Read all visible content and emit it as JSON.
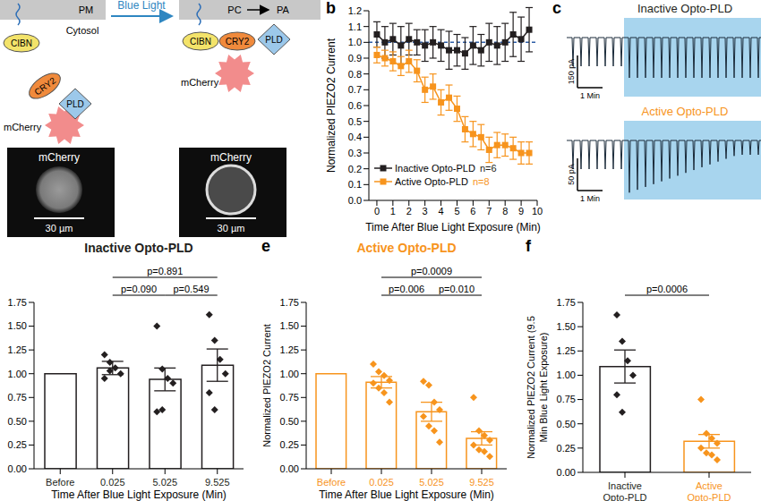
{
  "diagram": {
    "membrane": "PM",
    "cytosol": "Cytosol",
    "stimulus": "Blue Light",
    "substrate": "PC",
    "product": "PA",
    "proteins": [
      "CIBN",
      "CRY2",
      "PLD"
    ],
    "fluorophore": "mCherry",
    "images": [
      {
        "label": "mCherry",
        "scale_bar": "30 µm"
      },
      {
        "label": "mCherry",
        "scale_bar": "30 µm"
      }
    ]
  },
  "traces": {
    "panel": "c",
    "stimulus_color": "#a8d5ee",
    "panels": [
      {
        "title": "Inactive Opto-PLD",
        "color": "#231f20",
        "scale_y": "150 pA",
        "scale_x": "1 Min"
      },
      {
        "title": "Active Opto-PLD",
        "color": "#f7941d",
        "scale_y": "50 pA",
        "scale_x": "1 Min"
      }
    ]
  },
  "chart_data": [
    {
      "panel": "b",
      "type": "line",
      "x": [
        0,
        0.5,
        1,
        1.5,
        2,
        2.5,
        3,
        3.5,
        4,
        4.5,
        5,
        5.5,
        6,
        6.5,
        7,
        7.5,
        8,
        8.5,
        9,
        9.5
      ],
      "xlim": [
        -0.5,
        10
      ],
      "xticks": [
        0,
        1,
        2,
        3,
        4,
        5,
        6,
        7,
        8,
        9,
        10
      ],
      "ylim": [
        0,
        1.2
      ],
      "yticks": [
        {
          "value": 0,
          "label": "0.0"
        },
        0.1,
        0.2,
        0.3,
        0.4,
        0.5,
        0.6,
        0.7,
        0.8,
        0.9,
        {
          "value": 1,
          "label": "1.0"
        },
        1.1,
        1.2
      ],
      "x_label": "Time After Blue Light Exposure (Min)",
      "y_label": "Normalized PIEZO2 Current",
      "legend": "lower left",
      "reference_line": 1,
      "annotations": [
        {
          "text": "n=6",
          "series": "Inactive Opto-PLD"
        },
        {
          "text": "n=8",
          "series": "Active Opto-PLD"
        }
      ],
      "series": [
        {
          "name": "Inactive Opto-PLD",
          "color": "#231f20",
          "marker": "square",
          "values": [
            1.05,
            1.0,
            1.02,
            0.98,
            1.02,
            1.0,
            0.98,
            1.0,
            0.98,
            0.95,
            0.95,
            0.93,
            0.98,
            0.95,
            1.0,
            0.98,
            1.0,
            1.05,
            1.02,
            1.08
          ],
          "errors": [
            0.08,
            0.1,
            0.1,
            0.12,
            0.1,
            0.08,
            0.1,
            0.1,
            0.1,
            0.12,
            0.1,
            0.1,
            0.12,
            0.1,
            0.12,
            0.12,
            0.12,
            0.14,
            0.14,
            0.14
          ]
        },
        {
          "name": "Active Opto-PLD",
          "color": "#f7941d",
          "marker": "square",
          "values": [
            0.92,
            0.9,
            0.88,
            0.85,
            0.88,
            0.82,
            0.7,
            0.72,
            0.62,
            0.65,
            0.58,
            0.45,
            0.42,
            0.4,
            0.32,
            0.35,
            0.35,
            0.33,
            0.3,
            0.3
          ],
          "errors": [
            0.05,
            0.05,
            0.06,
            0.06,
            0.07,
            0.07,
            0.08,
            0.08,
            0.08,
            0.08,
            0.08,
            0.08,
            0.08,
            0.08,
            0.08,
            0.08,
            0.07,
            0.07,
            0.07,
            0.07
          ]
        }
      ]
    },
    {
      "type": "bar",
      "title": "Inactive Opto-PLD",
      "color": "#231f20",
      "categories": [
        "Before",
        "0.025",
        "5.025",
        "9.525"
      ],
      "values": [
        1,
        1.06,
        0.94,
        1.09
      ],
      "errors": [
        null,
        0.07,
        0.12,
        0.17
      ],
      "points": [
        [],
        [
          1.2,
          1.12,
          1.06,
          1.0,
          0.95,
          1.03
        ],
        [
          1.5,
          1.05,
          0.95,
          0.9,
          0.6,
          0.62
        ],
        [
          1.62,
          1.35,
          1.15,
          1.0,
          0.8,
          0.62
        ]
      ],
      "ylim": [
        0,
        1.75
      ],
      "yticks": [
        {
          "value": 0,
          "label": "0.00"
        },
        0.25,
        {
          "value": 0.5,
          "label": "0.50"
        },
        0.75,
        {
          "value": 1,
          "label": "1.00"
        },
        1.25,
        {
          "value": 1.5,
          "label": "1.50"
        },
        1.75
      ],
      "x_label": "Time After Blue Light Exposure (Min)",
      "comparisons": [
        {
          "from": "0.025",
          "to": "9.525",
          "label": "p=0.891"
        },
        {
          "from": "0.025",
          "to": "5.025",
          "label": "p=0.090"
        },
        {
          "from": "5.025",
          "to": "9.525",
          "label": "p=0.549"
        }
      ]
    },
    {
      "panel": "e",
      "type": "bar",
      "title": "Active Opto-PLD",
      "color": "#f7941d",
      "categories": [
        "Before",
        "0.025",
        "5.025",
        "9.525"
      ],
      "values": [
        1,
        0.91,
        0.6,
        0.32
      ],
      "errors": [
        null,
        0.06,
        0.1,
        0.07
      ],
      "points": [
        [],
        [
          1.1,
          1.02,
          0.98,
          0.93,
          0.9,
          0.85,
          0.8,
          0.7
        ],
        [
          0.92,
          0.88,
          0.7,
          0.62,
          0.55,
          0.45,
          0.4,
          0.28
        ],
        [
          0.75,
          0.4,
          0.35,
          0.3,
          0.25,
          0.2,
          0.18,
          0.13
        ]
      ],
      "ylim": [
        0,
        1.75
      ],
      "yticks": [
        {
          "value": 0,
          "label": "0.00"
        },
        0.25,
        {
          "value": 0.5,
          "label": "0.50"
        },
        0.75,
        {
          "value": 1,
          "label": "1.00"
        },
        1.25,
        {
          "value": 1.5,
          "label": "1.50"
        },
        1.75
      ],
      "x_label": "Time After Blue Light Exposure (Min)",
      "y_label": "Normalized PIEZO2 Current",
      "comparisons": [
        {
          "from": "0.025",
          "to": "9.525",
          "label": "p=0.0009"
        },
        {
          "from": "0.025",
          "to": "5.025",
          "label": "p=0.006"
        },
        {
          "from": "5.025",
          "to": "9.525",
          "label": "p=0.010"
        }
      ]
    },
    {
      "panel": "f",
      "type": "bar",
      "colors": [
        "#231f20",
        "#f7941d"
      ],
      "categories": [
        "Inactive Opto-PLD",
        "Active Opto-PLD"
      ],
      "values": [
        1.09,
        0.32
      ],
      "errors": [
        0.17,
        0.07
      ],
      "points": [
        [
          1.62,
          1.35,
          1.15,
          1.0,
          0.8,
          0.62
        ],
        [
          0.75,
          0.4,
          0.35,
          0.3,
          0.25,
          0.2,
          0.18,
          0.13
        ]
      ],
      "ylim": [
        0,
        1.75
      ],
      "yticks": [
        {
          "value": 0,
          "label": "0.00"
        },
        0.25,
        {
          "value": 0.5,
          "label": "0.50"
        },
        0.75,
        {
          "value": 1,
          "label": "1.00"
        },
        1.25,
        {
          "value": 1.5,
          "label": "1.50"
        },
        1.75
      ],
      "y_label": "Normalized PIEZO2 Current (9.5 Min Blue Light Exposure)",
      "comparisons": [
        {
          "from": "Inactive Opto-PLD",
          "to": "Active Opto-PLD",
          "label": "p=0.0006"
        }
      ]
    }
  ]
}
